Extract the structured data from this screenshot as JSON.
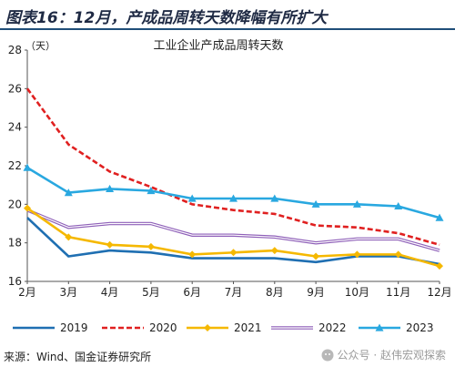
{
  "figure_title": "图表16：12月，产成品周转天数降幅有所扩大",
  "source": "来源：Wind、国金证券研究所",
  "watermark": "公众号 · 赵伟宏观探索",
  "colors": {
    "2019": "#1f6fb2",
    "2020": "#e02020",
    "2021": "#f5b800",
    "2022": "#8e5fb8",
    "2023": "#29a8e0",
    "title_rule": "#1f4e79"
  },
  "chart_data": {
    "type": "line",
    "title": "工业企业产成品周转天数",
    "ylabel": "（天）",
    "xlabel": "",
    "categories": [
      "2月",
      "3月",
      "4月",
      "5月",
      "6月",
      "7月",
      "8月",
      "9月",
      "10月",
      "11月",
      "12月"
    ],
    "ylim": [
      16,
      28
    ],
    "yticks": [
      16,
      18,
      20,
      22,
      24,
      26,
      28
    ],
    "grid": false,
    "legend_position": "bottom",
    "series": [
      {
        "name": "2019",
        "style": "solid",
        "marker": "none",
        "values": [
          19.3,
          17.3,
          17.6,
          17.5,
          17.2,
          17.2,
          17.2,
          17.0,
          17.3,
          17.3,
          16.9
        ]
      },
      {
        "name": "2020",
        "style": "dashed",
        "marker": "none",
        "values": [
          26.0,
          23.1,
          21.7,
          20.9,
          20.0,
          19.7,
          19.5,
          18.9,
          18.8,
          18.5,
          17.9
        ]
      },
      {
        "name": "2021",
        "style": "solid",
        "marker": "diamond",
        "values": [
          19.8,
          18.3,
          17.9,
          17.8,
          17.4,
          17.5,
          17.6,
          17.3,
          17.4,
          17.4,
          16.8
        ]
      },
      {
        "name": "2022",
        "style": "double",
        "marker": "none",
        "values": [
          19.7,
          18.8,
          19.0,
          19.0,
          18.4,
          18.4,
          18.3,
          18.0,
          18.2,
          18.2,
          17.6
        ]
      },
      {
        "name": "2023",
        "style": "solid",
        "marker": "triangle",
        "values": [
          21.9,
          20.6,
          20.8,
          20.7,
          20.3,
          20.3,
          20.3,
          20.0,
          20.0,
          19.9,
          19.3
        ]
      }
    ]
  }
}
